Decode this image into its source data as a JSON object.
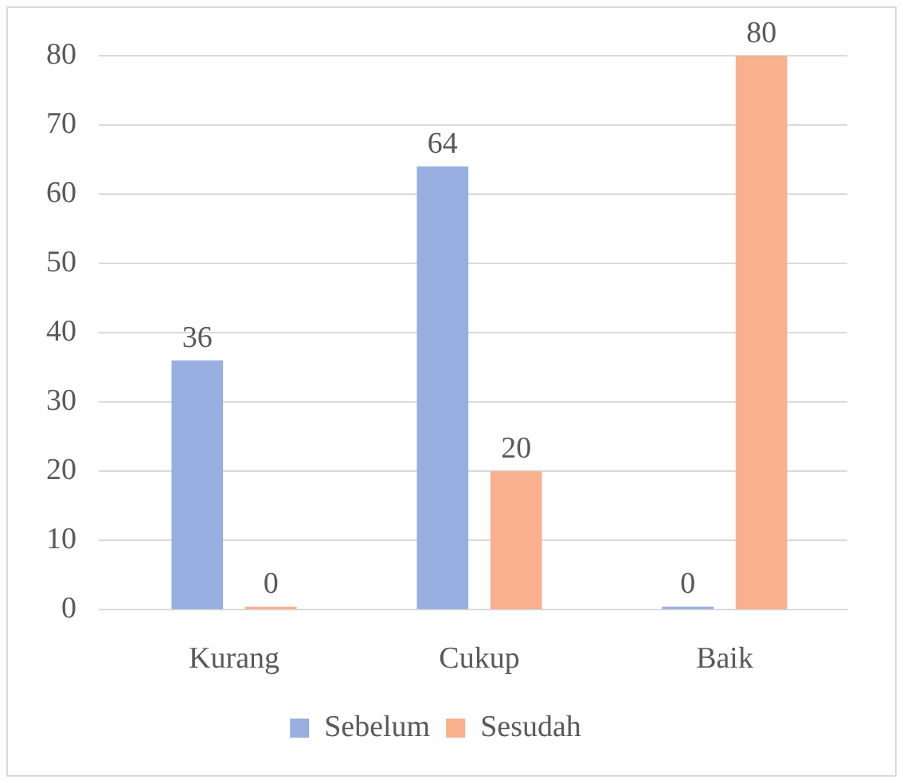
{
  "chart_data": {
    "type": "bar",
    "categories": [
      "Kurang",
      "Cukup",
      "Baik"
    ],
    "series": [
      {
        "name": "Sebelum",
        "color": "#98aee0",
        "values": [
          36,
          64,
          0
        ]
      },
      {
        "name": "Sesudah",
        "color": "#f8b08e",
        "values": [
          0,
          20,
          80
        ]
      }
    ],
    "ylim": [
      0,
      80
    ],
    "yticks": [
      0,
      10,
      20,
      30,
      40,
      50,
      60,
      70,
      80
    ],
    "grid": "y",
    "legend": "bottom",
    "data_labels": true
  }
}
